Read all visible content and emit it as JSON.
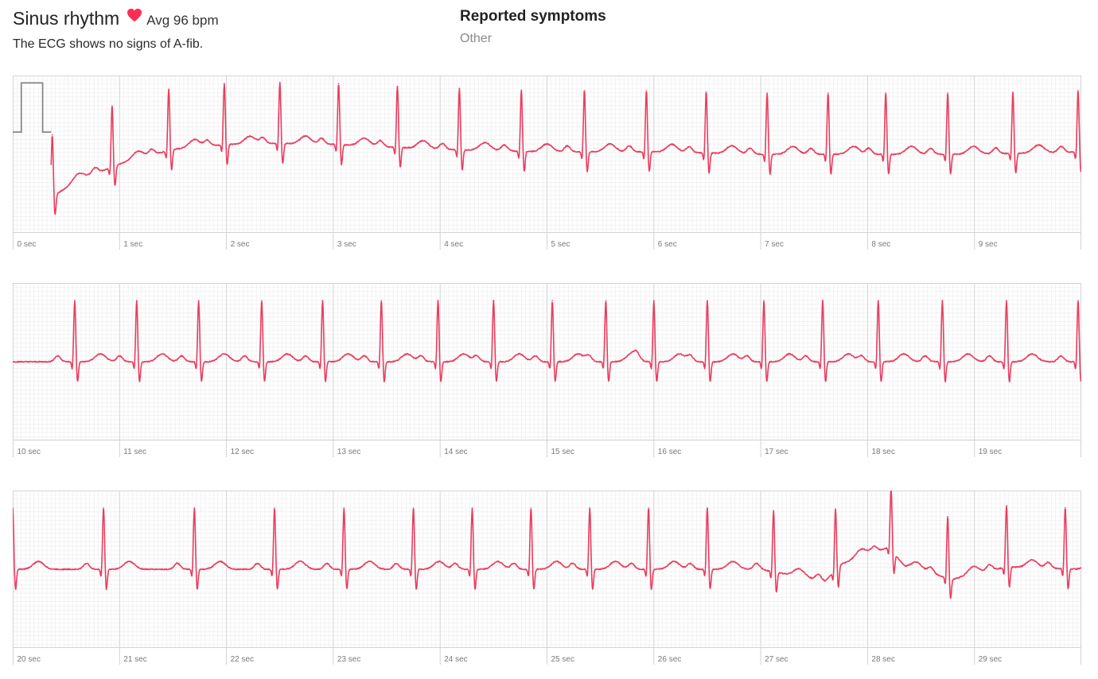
{
  "rhythm": {
    "title": "Sinus rhythm",
    "avg": "Avg 96 bpm",
    "description": "The ECG shows no signs of A-fib.",
    "heart_icon": "heart-icon",
    "heart_color": "#ff2d55"
  },
  "symptoms": {
    "title": "Reported symptoms",
    "value": "Other"
  },
  "colors": {
    "trace": "#ea3d5f",
    "grid_minor": "#ececec",
    "grid_major": "#d3d3d3",
    "calibration": "#888888"
  },
  "chart_data": {
    "type": "line",
    "unit": "sec",
    "beats_per_minute": 96,
    "strips": [
      {
        "start": 0,
        "end": 10,
        "calibration_pulse": true,
        "tick_labels": [
          "0 sec",
          "1 sec",
          "2 sec",
          "3 sec",
          "4 sec",
          "5 sec",
          "6 sec",
          "7 sec",
          "8 sec",
          "9 sec"
        ],
        "ylim": [
          -1.6,
          1.6
        ],
        "baseline": [
          [
            0.37,
            -0.85
          ],
          [
            0.7,
            -0.45
          ],
          [
            1.0,
            -0.2
          ],
          [
            1.5,
            0.1
          ],
          [
            2.0,
            0.2
          ],
          [
            2.5,
            0.22
          ],
          [
            3.0,
            0.2
          ],
          [
            4.0,
            0.1
          ],
          [
            5.0,
            0.05
          ],
          [
            6.0,
            0.05
          ],
          [
            7.0,
            0.0
          ],
          [
            8.0,
            0.0
          ],
          [
            9.0,
            0.0
          ],
          [
            10.0,
            0.05
          ]
        ],
        "beats": [
          0.37,
          0.93,
          1.46,
          1.98,
          2.5,
          3.05,
          3.6,
          4.18,
          4.76,
          5.35,
          5.93,
          6.49,
          7.06,
          7.63,
          8.17,
          8.75,
          9.36,
          9.97
        ]
      },
      {
        "start": 10,
        "end": 20,
        "calibration_pulse": false,
        "tick_labels": [
          "10 sec",
          "11 sec",
          "12 sec",
          "13 sec",
          "14 sec",
          "15 sec",
          "16 sec",
          "17 sec",
          "18 sec",
          "19 sec"
        ],
        "ylim": [
          -1.6,
          1.6
        ],
        "baseline": [
          [
            10.0,
            0.0
          ],
          [
            20.0,
            0.0
          ]
        ],
        "beats": [
          10.58,
          11.16,
          11.74,
          12.33,
          12.9,
          13.45,
          13.98,
          14.5,
          15.05,
          15.55,
          16.0,
          16.5,
          17.03,
          17.58,
          18.1,
          18.7,
          19.3,
          19.97
        ]
      },
      {
        "start": 20,
        "end": 30,
        "calibration_pulse": false,
        "tick_labels": [
          "20 sec",
          "21 sec",
          "22 sec",
          "23 sec",
          "24 sec",
          "25 sec",
          "26 sec",
          "27 sec",
          "28 sec",
          "29 sec"
        ],
        "ylim": [
          -1.6,
          1.6
        ],
        "baseline": [
          [
            20.0,
            0.0
          ],
          [
            27.0,
            0.0
          ],
          [
            27.6,
            -0.25
          ],
          [
            27.75,
            0.1
          ],
          [
            28.2,
            0.45
          ],
          [
            28.35,
            0.05
          ],
          [
            28.8,
            -0.2
          ],
          [
            29.3,
            0.05
          ],
          [
            30.0,
            0.0
          ]
        ],
        "beats": [
          20.0,
          20.85,
          21.7,
          22.45,
          23.1,
          23.75,
          24.3,
          24.85,
          25.4,
          25.95,
          26.5,
          27.12,
          27.7,
          28.22,
          28.75,
          29.3,
          29.85
        ]
      }
    ]
  }
}
